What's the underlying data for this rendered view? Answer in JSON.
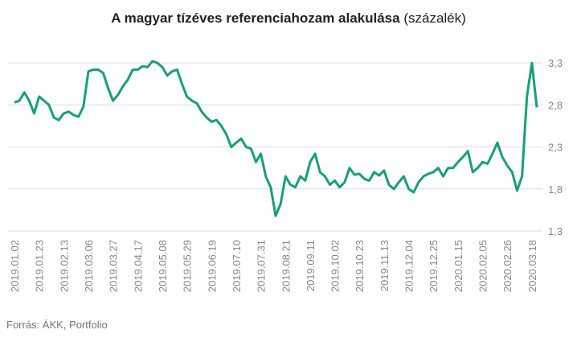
{
  "chart_data": {
    "type": "line",
    "title": "A magyar tízéves referenciahozam alakulása",
    "title_unit": "(százalék)",
    "source": "Forrás: ÁKK, Portfolio",
    "categories": [
      "2019.01.02",
      null,
      null,
      null,
      null,
      "2019.01.23",
      null,
      null,
      null,
      null,
      "2019.02.13",
      null,
      null,
      null,
      null,
      "2019.03.06",
      null,
      null,
      null,
      null,
      "2019.03.27",
      null,
      null,
      null,
      null,
      "2019.04.17",
      null,
      null,
      null,
      null,
      "2019.05.08",
      null,
      null,
      null,
      null,
      "2019.05.29",
      null,
      null,
      null,
      null,
      "2019.06.19",
      null,
      null,
      null,
      null,
      "2019.07.10",
      null,
      null,
      null,
      null,
      "2019.07.31",
      null,
      null,
      null,
      null,
      "2019.08.21",
      null,
      null,
      null,
      null,
      "2019.09.11",
      null,
      null,
      null,
      null,
      "2019.10.02",
      null,
      null,
      null,
      null,
      "2019.10.23",
      null,
      null,
      null,
      null,
      "2019.11.13",
      null,
      null,
      null,
      null,
      "2019.12.04",
      null,
      null,
      null,
      null,
      "2019.12.25",
      null,
      null,
      null,
      null,
      "2020.01.15",
      null,
      null,
      null,
      null,
      "2020.02.05",
      null,
      null,
      null,
      null,
      "2020.02.26",
      null,
      null,
      null,
      null,
      "2020.03.18",
      null
    ],
    "series": [
      {
        "color": "#16a07a",
        "values": [
          2.83,
          2.85,
          2.95,
          2.85,
          2.7,
          2.9,
          2.85,
          2.8,
          2.65,
          2.62,
          2.7,
          2.72,
          2.68,
          2.66,
          2.78,
          3.2,
          3.22,
          3.22,
          3.18,
          3.0,
          2.85,
          2.92,
          3.02,
          3.1,
          3.22,
          3.22,
          3.26,
          3.25,
          3.32,
          3.3,
          3.25,
          3.15,
          3.2,
          3.22,
          3.05,
          2.9,
          2.85,
          2.82,
          2.72,
          2.65,
          2.6,
          2.62,
          2.55,
          2.45,
          2.3,
          2.35,
          2.4,
          2.3,
          2.28,
          2.12,
          2.22,
          1.95,
          1.82,
          1.48,
          1.62,
          1.95,
          1.85,
          1.82,
          1.95,
          1.9,
          2.12,
          2.22,
          2.0,
          1.95,
          1.85,
          1.9,
          1.82,
          1.88,
          2.05,
          1.97,
          1.98,
          1.92,
          1.9,
          2.0,
          1.96,
          2.02,
          1.85,
          1.8,
          1.88,
          1.95,
          1.8,
          1.76,
          1.88,
          1.95,
          1.98,
          2.0,
          2.05,
          1.95,
          2.05,
          2.05,
          2.12,
          2.18,
          2.25,
          2.0,
          2.05,
          2.12,
          2.1,
          2.22,
          2.35,
          2.18,
          2.08,
          2.0,
          1.78,
          1.95,
          2.9,
          3.3,
          2.77
        ]
      }
    ],
    "ylim": [
      1.3,
      3.35
    ],
    "yticks": [
      {
        "value": 1.3,
        "label": "1,3"
      },
      {
        "value": 1.8,
        "label": "1,8"
      },
      {
        "value": 2.3,
        "label": "2,3"
      },
      {
        "value": 2.8,
        "label": "2,8"
      },
      {
        "value": 3.3,
        "label": "3,3"
      }
    ],
    "grid": true
  }
}
